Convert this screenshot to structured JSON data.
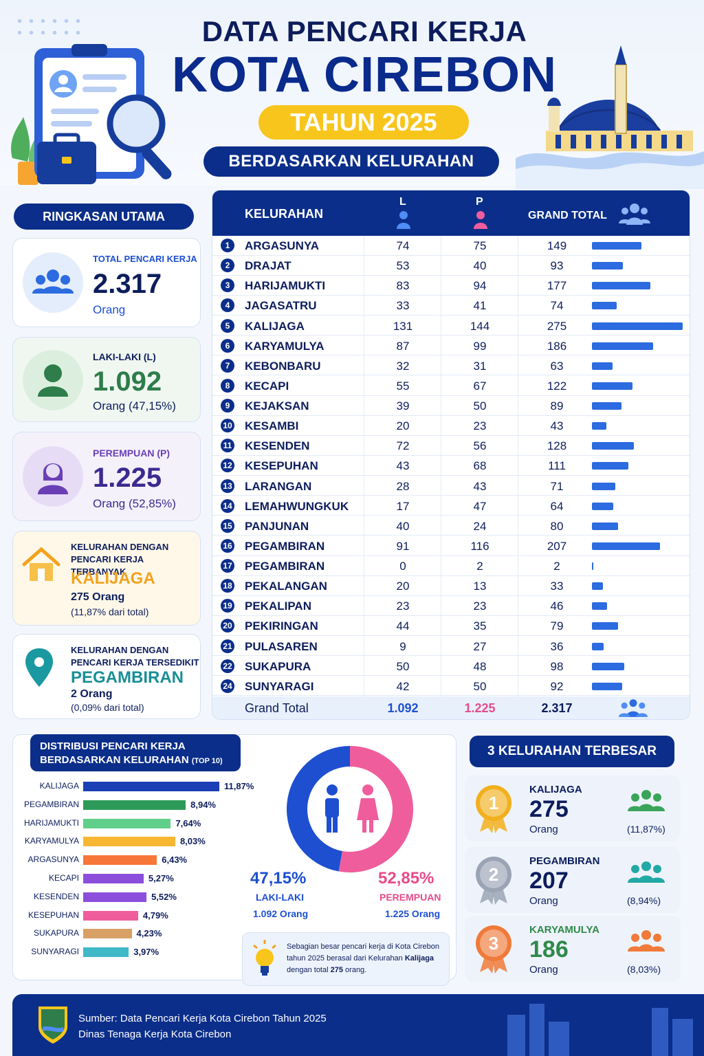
{
  "header": {
    "title_line1": "DATA PENCARI KERJA",
    "title_line2": "KOTA CIREBON",
    "year_badge": "TAHUN 2025",
    "subtitle": "BERDASARKAN KELURAHAN"
  },
  "summary": {
    "section_title": "RINGKASAN UTAMA",
    "total": {
      "label": "TOTAL PENCARI KERJA",
      "value": "2.317",
      "unit": "Orang"
    },
    "male": {
      "label": "LAKI-LAKI (L)",
      "value": "1.092",
      "unit": "Orang (47,15%)"
    },
    "female": {
      "label": "PEREMPUAN (P)",
      "value": "1.225",
      "unit": "Orang (52,85%)"
    },
    "most": {
      "label_line1": "KELURAHAN DENGAN",
      "label_line2": "PENCARI KERJA TERBANYAK",
      "name": "KALIJAGA",
      "count": "275 Orang",
      "pct": "(11,87% dari total)"
    },
    "least": {
      "label_line1": "KELURAHAN DENGAN",
      "label_line2": "PENCARI KERJA TERSEDIKIT",
      "name": "PEGAMBIRAN",
      "count": "2 Orang",
      "pct": "(0,09% dari total)"
    }
  },
  "table": {
    "headers": {
      "kelurahan": "KELURAHAN",
      "l": "L",
      "p": "P",
      "total": "GRAND TOTAL"
    },
    "footer": {
      "label": "Grand Total",
      "l": "1.092",
      "p": "1.225",
      "total": "2.317"
    }
  },
  "chart_data": [
    {
      "type": "table",
      "columns": [
        "No",
        "Kelurahan",
        "L",
        "P",
        "Grand Total"
      ],
      "rows": [
        {
          "no": "1",
          "name": "ARGASUNYA",
          "l": 74,
          "p": 75,
          "total": 149
        },
        {
          "no": "2",
          "name": "DRAJAT",
          "l": 53,
          "p": 40,
          "total": 93
        },
        {
          "no": "3",
          "name": "HARIJAMUKTI",
          "l": 83,
          "p": 94,
          "total": 177
        },
        {
          "no": "4",
          "name": "JAGASATRU",
          "l": 33,
          "p": 41,
          "total": 74
        },
        {
          "no": "5",
          "name": "KALIJAGA",
          "l": 131,
          "p": 144,
          "total": 275
        },
        {
          "no": "6",
          "name": "KARYAMULYA",
          "l": 87,
          "p": 99,
          "total": 186
        },
        {
          "no": "7",
          "name": "KEBONBARU",
          "l": 32,
          "p": 31,
          "total": 63
        },
        {
          "no": "8",
          "name": "KECAPI",
          "l": 55,
          "p": 67,
          "total": 122
        },
        {
          "no": "9",
          "name": "KEJAKSAN",
          "l": 39,
          "p": 50,
          "total": 89
        },
        {
          "no": "10",
          "name": "KESAMBI",
          "l": 20,
          "p": 23,
          "total": 43
        },
        {
          "no": "11",
          "name": "KESENDEN",
          "l": 72,
          "p": 56,
          "total": 128
        },
        {
          "no": "12",
          "name": "KESEPUHAN",
          "l": 43,
          "p": 68,
          "total": 111
        },
        {
          "no": "13",
          "name": "LARANGAN",
          "l": 28,
          "p": 43,
          "total": 71
        },
        {
          "no": "14",
          "name": "LEMAHWUNGKUK",
          "l": 17,
          "p": 47,
          "total": 64
        },
        {
          "no": "15",
          "name": "PANJUNAN",
          "l": 40,
          "p": 24,
          "total": 80
        },
        {
          "no": "16",
          "name": "PEGAMBIRAN",
          "l": 91,
          "p": 116,
          "total": 207
        },
        {
          "no": "17",
          "name": "PEGAMBIRAN",
          "l": 0,
          "p": 2,
          "total": 2
        },
        {
          "no": "18",
          "name": "PEKALANGAN",
          "l": 20,
          "p": 13,
          "total": 33
        },
        {
          "no": "19",
          "name": "PEKALIPAN",
          "l": 23,
          "p": 23,
          "total": 46
        },
        {
          "no": "20",
          "name": "PEKIRINGAN",
          "l": 44,
          "p": 35,
          "total": 79
        },
        {
          "no": "21",
          "name": "PULASAREN",
          "l": 9,
          "p": 27,
          "total": 36
        },
        {
          "no": "22",
          "name": "SUKAPURA",
          "l": 50,
          "p": 48,
          "total": 98
        },
        {
          "no": "24",
          "name": "SUNYARAGI",
          "l": 42,
          "p": 50,
          "total": 92
        }
      ]
    },
    {
      "type": "bar",
      "orientation": "horizontal",
      "title": "DISTRIBUSI PENCARI KERJA BERDASARKAN KELURAHAN",
      "title_suffix": "(TOP 10)",
      "categories": [
        "KALIJAGA",
        "PEGAMBIRAN",
        "HARIJAMUKTI",
        "KARYAMULYA",
        "ARGASUNYA",
        "KECAPI",
        "KESENDEN",
        "KESEPUHAN",
        "SUKAPURA",
        "SUNYARAGI"
      ],
      "values": [
        11.87,
        8.94,
        7.64,
        8.03,
        6.43,
        5.27,
        5.52,
        4.79,
        4.23,
        3.97
      ],
      "labels": [
        "11,87%",
        "8,94%",
        "7,64%",
        "8,03%",
        "6,43%",
        "5,27%",
        "5,52%",
        "4,79%",
        "4,23%",
        "3,97%"
      ],
      "colors": [
        "#1b3fb5",
        "#2e9a5a",
        "#5fcf8a",
        "#f7b733",
        "#f7773a",
        "#8b4fdc",
        "#8b4fdc",
        "#ef5d9c",
        "#d9a066",
        "#3fb8c8"
      ]
    },
    {
      "type": "pie",
      "donut": true,
      "categories": [
        "LAKI-LAKI",
        "PEREMPUAN"
      ],
      "values": [
        47.15,
        52.85
      ],
      "labels": [
        "47,15%",
        "52,85%"
      ],
      "counts": [
        "1.092 Orang",
        "1.225 Orang"
      ],
      "colors": [
        "#1d4fd0",
        "#ef5d9c"
      ]
    }
  ],
  "note": {
    "text_before": "Sebagian besar pencari kerja di Kota Cirebon tahun 2025 berasal dari Kelurahan ",
    "bold_name": "Kalijaga",
    "text_mid": " dengan total ",
    "bold_value": "275",
    "text_after": " orang."
  },
  "top3": {
    "title": "3 KELURAHAN TERBESAR",
    "items": [
      {
        "rank": "1",
        "name": "KALIJAGA",
        "value": "275",
        "unit": "Orang",
        "pct": "(11,87%)",
        "medal": "#f2b01e",
        "group": "#3aa55a",
        "name_color": "#0d1d5c"
      },
      {
        "rank": "2",
        "name": "PEGAMBIRAN",
        "value": "207",
        "unit": "Orang",
        "pct": "(8,94%)",
        "medal": "#9aa4b4",
        "group": "#23a9a5",
        "name_color": "#0d1d5c"
      },
      {
        "rank": "3",
        "name": "KARYAMULYA",
        "value": "186",
        "unit": "Orang",
        "pct": "(8,03%)",
        "medal": "#f07a3a",
        "group": "#f07a3a",
        "name_color": "#2e8a4a"
      }
    ]
  },
  "footer": {
    "source_line1": "Sumber: Data Pencari Kerja Kota Cirebon Tahun 2025",
    "source_line2": "Dinas Tenaga Kerja Kota Cirebon"
  },
  "colors": {
    "navy": "#0b2e8a",
    "blue": "#2c6be0",
    "pink": "#ef5d9c",
    "yellow": "#f8c51c"
  }
}
